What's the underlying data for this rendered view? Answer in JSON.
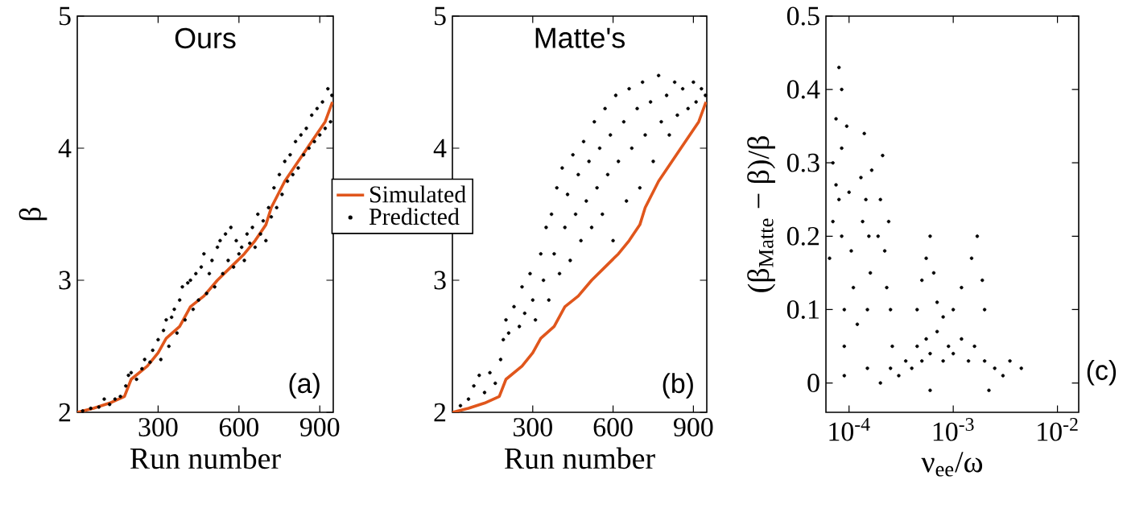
{
  "chart_data": [
    {
      "type": "scatter",
      "title": "Ours",
      "xlabel": "Run number",
      "ylabel": "β",
      "xlim": [
        0,
        950
      ],
      "ylim": [
        2,
        5
      ],
      "xticks": [
        300,
        600,
        900
      ],
      "yticks": [
        2,
        3,
        4,
        5
      ],
      "legend": "right",
      "annotations": [
        "(a)"
      ],
      "series": [
        {
          "name": "Simulated",
          "type": "line",
          "color": "#e0561c",
          "marker": "none",
          "x": [
            0,
            60,
            120,
            175,
            200,
            260,
            300,
            330,
            380,
            420,
            470,
            520,
            570,
            620,
            660,
            700,
            720,
            770,
            820,
            870,
            920,
            947
          ],
          "values": [
            2.0,
            2.03,
            2.07,
            2.12,
            2.25,
            2.35,
            2.45,
            2.56,
            2.65,
            2.8,
            2.88,
            3.0,
            3.1,
            3.2,
            3.3,
            3.42,
            3.55,
            3.75,
            3.9,
            4.05,
            4.2,
            4.35
          ]
        },
        {
          "name": "Predicted",
          "color": "#000000",
          "marker": "circle",
          "x": [
            20,
            50,
            80,
            100,
            120,
            140,
            160,
            180,
            190,
            200,
            220,
            240,
            250,
            270,
            280,
            300,
            310,
            320,
            330,
            340,
            350,
            360,
            370,
            380,
            390,
            400,
            410,
            420,
            430,
            440,
            450,
            460,
            470,
            480,
            490,
            500,
            510,
            520,
            530,
            540,
            550,
            560,
            570,
            580,
            590,
            600,
            610,
            620,
            630,
            640,
            650,
            660,
            670,
            680,
            690,
            700,
            710,
            720,
            730,
            740,
            750,
            760,
            770,
            780,
            790,
            800,
            810,
            820,
            830,
            840,
            850,
            860,
            870,
            880,
            890,
            900,
            910,
            920,
            930,
            940,
            945
          ],
          "values": [
            2.01,
            2.03,
            2.04,
            2.1,
            2.06,
            2.1,
            2.12,
            2.2,
            2.28,
            2.3,
            2.25,
            2.33,
            2.4,
            2.38,
            2.47,
            2.55,
            2.4,
            2.62,
            2.7,
            2.5,
            2.72,
            2.78,
            2.6,
            2.85,
            2.95,
            2.7,
            2.98,
            3.0,
            2.78,
            3.05,
            2.85,
            3.1,
            3.2,
            2.9,
            3.05,
            3.15,
            2.95,
            3.25,
            3.3,
            3.05,
            3.35,
            3.15,
            3.4,
            3.1,
            3.3,
            3.2,
            3.25,
            3.15,
            3.35,
            3.28,
            3.4,
            3.25,
            3.5,
            3.35,
            3.45,
            3.3,
            3.55,
            3.48,
            3.7,
            3.55,
            3.8,
            3.65,
            3.9,
            3.75,
            3.95,
            3.8,
            4.05,
            3.85,
            4.1,
            3.95,
            4.15,
            4.0,
            4.25,
            4.05,
            4.3,
            4.1,
            4.35,
            4.15,
            4.45,
            4.2,
            4.4
          ]
        }
      ]
    },
    {
      "type": "scatter",
      "title": "Matte's",
      "xlabel": "Run number",
      "xlim": [
        0,
        950
      ],
      "ylim": [
        2,
        5
      ],
      "xticks": [
        300,
        600,
        900
      ],
      "yticks": [
        2,
        3,
        4,
        5
      ],
      "annotations": [
        "(b)"
      ],
      "series": [
        {
          "type": "line",
          "color": "#e0561c",
          "marker": "none",
          "x": [
            0,
            60,
            120,
            175,
            200,
            260,
            300,
            330,
            380,
            420,
            470,
            520,
            570,
            620,
            660,
            700,
            720,
            770,
            820,
            870,
            920,
            947
          ],
          "values": [
            2.0,
            2.03,
            2.07,
            2.12,
            2.25,
            2.35,
            2.45,
            2.56,
            2.65,
            2.8,
            2.88,
            3.0,
            3.1,
            3.2,
            3.3,
            3.42,
            3.55,
            3.75,
            3.9,
            4.05,
            4.2,
            4.35
          ]
        },
        {
          "color": "#000000",
          "marker": "circle",
          "x": [
            30,
            60,
            80,
            100,
            120,
            140,
            160,
            180,
            190,
            200,
            210,
            230,
            250,
            260,
            270,
            290,
            300,
            310,
            330,
            340,
            350,
            360,
            370,
            380,
            390,
            400,
            410,
            420,
            430,
            440,
            450,
            460,
            470,
            480,
            490,
            500,
            510,
            520,
            530,
            540,
            550,
            560,
            570,
            580,
            590,
            600,
            610,
            620,
            640,
            650,
            660,
            670,
            690,
            700,
            710,
            720,
            740,
            750,
            770,
            780,
            800,
            810,
            830,
            840,
            860,
            880,
            900,
            910,
            930,
            945
          ],
          "values": [
            2.05,
            2.1,
            2.2,
            2.28,
            2.15,
            2.3,
            2.22,
            2.4,
            2.55,
            2.7,
            2.6,
            2.8,
            2.65,
            2.95,
            2.75,
            3.05,
            2.85,
            2.7,
            3.2,
            3.0,
            3.4,
            2.85,
            3.5,
            3.2,
            3.7,
            3.05,
            3.85,
            3.4,
            3.65,
            3.15,
            3.95,
            3.5,
            3.8,
            3.3,
            4.05,
            3.6,
            3.9,
            3.4,
            4.2,
            3.7,
            4.0,
            3.5,
            4.3,
            3.8,
            4.1,
            3.3,
            4.4,
            3.9,
            4.2,
            3.6,
            4.45,
            4.0,
            4.3,
            3.7,
            4.5,
            4.1,
            4.35,
            3.9,
            4.55,
            4.2,
            4.4,
            4.1,
            4.5,
            4.25,
            4.45,
            4.3,
            4.5,
            4.35,
            4.45,
            4.4
          ]
        }
      ]
    },
    {
      "type": "scatter",
      "xlabel": "ν$_{ee}$/ω",
      "ylabel": "(β$_{Matte}$ − β)/β",
      "log": "x",
      "xlim": [
        6e-05,
        0.016
      ],
      "ylim": [
        -0.04,
        0.5
      ],
      "xticks": [
        {
          "value": 0.0001,
          "label": "10$^{-4}$"
        },
        {
          "value": 0.001,
          "label": "10$^{-3}$"
        },
        {
          "value": 0.01,
          "label": "10$^{-2}$"
        }
      ],
      "yticks": [
        0,
        0.1,
        0.2,
        0.3,
        0.4,
        0.5
      ],
      "annotations": [
        "(c)"
      ],
      "series": [
        {
          "color": "#000000",
          "marker": "circle",
          "x": [
            6.5e-05,
            7e-05,
            7e-05,
            7.5e-05,
            7.5e-05,
            8e-05,
            8e-05,
            8.5e-05,
            8.5e-05,
            8.5e-05,
            9e-05,
            9e-05,
            9e-05,
            9.5e-05,
            0.0001,
            0.000105,
            0.00011,
            0.00012,
            0.00013,
            0.000135,
            0.00014,
            0.000145,
            0.00015,
            0.000155,
            0.00016,
            0.000165,
            0.00015,
            0.00019,
            0.0002,
            0.00021,
            0.00022,
            0.00023,
            0.00024,
            0.00025,
            0.00025,
            0.00026,
            0.0002,
            0.0003,
            0.00035,
            0.0004,
            0.00045,
            0.0005,
            0.00055,
            0.0006,
            0.0007,
            0.0008,
            0.0009,
            0.001,
            0.0012,
            0.0014,
            0.0016,
            0.002,
            0.0025,
            0.003,
            0.0035,
            0.0045,
            0.0006,
            0.0022,
            0.00045,
            0.0005,
            0.00055,
            0.0006,
            0.00065,
            0.0007,
            0.0008,
            0.001,
            0.0012,
            0.0015,
            0.0017,
            0.0019,
            0.002
          ],
          "values": [
            0.17,
            0.22,
            0.3,
            0.27,
            0.36,
            0.43,
            0.25,
            0.4,
            0.32,
            0.2,
            0.1,
            0.05,
            0.01,
            0.35,
            0.26,
            0.18,
            0.13,
            0.08,
            0.28,
            0.22,
            0.34,
            0.25,
            0.1,
            0.2,
            0.15,
            0.29,
            0.02,
            0.2,
            0.25,
            0.31,
            0.18,
            0.13,
            0.22,
            0.1,
            0.02,
            0.05,
            0.0,
            0.01,
            0.03,
            0.02,
            0.05,
            0.03,
            0.06,
            0.04,
            0.07,
            0.03,
            0.05,
            0.04,
            0.06,
            0.03,
            0.05,
            0.03,
            0.02,
            0.01,
            0.03,
            0.02,
            -0.01,
            -0.01,
            0.1,
            0.14,
            0.17,
            0.2,
            0.15,
            0.11,
            0.09,
            0.1,
            0.13,
            0.17,
            0.2,
            0.14,
            0.1
          ]
        }
      ]
    }
  ]
}
